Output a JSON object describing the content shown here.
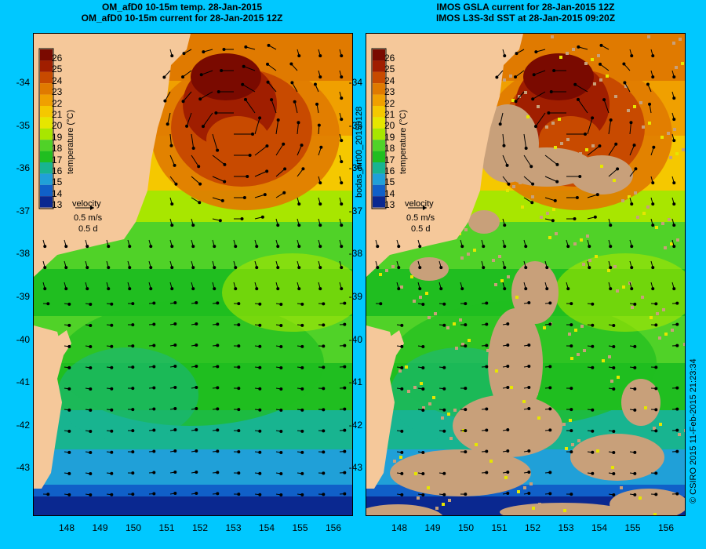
{
  "left": {
    "title_line1": "OM_afD0 10-15m temp. 28-Jan-2015",
    "title_line2": "OM_afD0 10-15m current for 28-Jan-2015 12Z"
  },
  "right": {
    "title_line1": "IMOS GSLA current for 28-Jan-2015 12Z",
    "title_line2": "IMOS L3S-3d SST at 28-Jan-2015 09:20Z"
  },
  "axes": {
    "y_ticks": [
      "-34",
      "-35",
      "-36",
      "-37",
      "-38",
      "-39",
      "-40",
      "-41",
      "-42",
      "-43"
    ],
    "x_ticks": [
      "148",
      "149",
      "150",
      "151",
      "152",
      "153",
      "154",
      "155",
      "156"
    ]
  },
  "colorbar": {
    "labels": [
      "26",
      "25",
      "24",
      "23",
      "22",
      "21",
      "20",
      "19",
      "18",
      "17",
      "16",
      "15",
      "14",
      "13"
    ],
    "title": "temperature (°C)",
    "colors": [
      "#7a0a00",
      "#a01e00",
      "#c84a00",
      "#e07a00",
      "#f0a000",
      "#f5c800",
      "#e6e600",
      "#a8e600",
      "#50d228",
      "#20be20",
      "#18b490",
      "#20a0d8",
      "#1060c8",
      "#0a2890"
    ]
  },
  "velocity": {
    "label": "velocity",
    "speed": "0.5 m/s",
    "duration": "0.5 d"
  },
  "side_label": "bodas_nrt00_20150128",
  "copyright": "© CSIRO 2015  11-Feb-2015 21:23:34",
  "colors": {
    "land": "#f5c89a",
    "missing": "#c8a07a",
    "background": "#00c8ff"
  }
}
